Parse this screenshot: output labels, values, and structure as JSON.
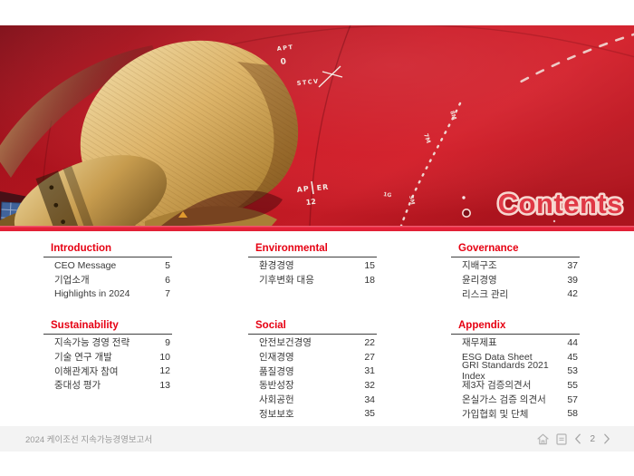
{
  "accent": {
    "red": "#e60012",
    "strip_red": "#e62239",
    "gold": "#d4ab5e"
  },
  "hero": {
    "title": "Contents",
    "markings": {
      "apt": "APT",
      "apt_zero": "0",
      "stcv": "STCV",
      "ap": "AP",
      "er": "ER",
      "twelve": "12",
      "m7": "7M",
      "m8": "8M",
      "m5": "5M",
      "g1": "1G"
    }
  },
  "toc": {
    "sections": [
      {
        "title": "Introduction",
        "items": [
          {
            "label": "CEO Message",
            "page": "5"
          },
          {
            "label": "기업소개",
            "page": "6"
          },
          {
            "label": "Highlights in 2024",
            "page": "7"
          }
        ]
      },
      {
        "title": "Environmental",
        "items": [
          {
            "label": "환경경영",
            "page": "15"
          },
          {
            "label": "기후변화 대응",
            "page": "18"
          }
        ]
      },
      {
        "title": "Governance",
        "items": [
          {
            "label": "지배구조",
            "page": "37"
          },
          {
            "label": "윤리경영",
            "page": "39"
          },
          {
            "label": "리스크 관리",
            "page": "42"
          }
        ]
      },
      {
        "title": "Sustainability",
        "items": [
          {
            "label": "지속가능 경영 전략",
            "page": "9"
          },
          {
            "label": "기술 연구 개발",
            "page": "10"
          },
          {
            "label": "이해관계자 참여",
            "page": "12"
          },
          {
            "label": "중대성 평가",
            "page": "13"
          }
        ]
      },
      {
        "title": "Social",
        "items": [
          {
            "label": "안전보건경영",
            "page": "22"
          },
          {
            "label": "인재경영",
            "page": "27"
          },
          {
            "label": "품질경영",
            "page": "31"
          },
          {
            "label": "동반성장",
            "page": "32"
          },
          {
            "label": "사회공헌",
            "page": "34"
          },
          {
            "label": "정보보호",
            "page": "35"
          }
        ]
      },
      {
        "title": "Appendix",
        "items": [
          {
            "label": "재무제표",
            "page": "44"
          },
          {
            "label": "ESG Data Sheet",
            "page": "45"
          },
          {
            "label": "GRI Standards 2021 Index",
            "page": "53"
          },
          {
            "label": "제3자 검증의견서",
            "page": "55"
          },
          {
            "label": "온실가스 검증 의견서",
            "page": "57"
          },
          {
            "label": "가입협회 및 단체",
            "page": "58"
          }
        ]
      }
    ]
  },
  "footer": {
    "report_title": "2024 케이조선 지속가능경영보고서",
    "page_number": "2",
    "icons": {
      "home": "home-icon",
      "contents": "document-icon",
      "prev": "chevron-left-icon",
      "next": "chevron-right-icon"
    }
  }
}
